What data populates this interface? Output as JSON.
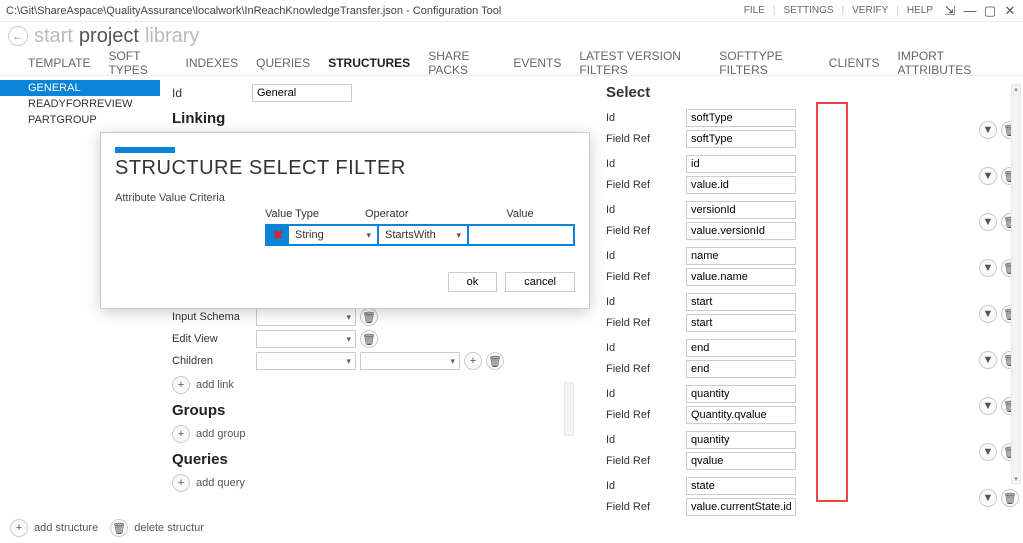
{
  "title_path": "C:\\Git\\ShareAspace\\QualityAssurance\\localwork\\InReachKnowledgeTransfer.json - Configuration Tool",
  "top_menu": [
    "FILE",
    "SETTINGS",
    "VERIFY",
    "HELP"
  ],
  "breadcrumb": {
    "start": "start",
    "project": "project",
    "library": "library"
  },
  "tabs": [
    "TEMPLATE",
    "SOFT TYPES",
    "INDEXES",
    "QUERIES",
    "STRUCTURES",
    "SHARE PACKS",
    "EVENTS",
    "LATEST VERSION FILTERS",
    "SOFTTYPE FILTERS",
    "CLIENTS",
    "IMPORT ATTRIBUTES"
  ],
  "active_tab": "STRUCTURES",
  "sidebar_items": [
    "GENERAL",
    "READYFORREVIEW",
    "PARTGROUP"
  ],
  "sidebar_selected": "GENERAL",
  "form": {
    "id_label": "Id",
    "id_value": "General",
    "linking_header": "Linking",
    "input_schema_label": "Input Schema",
    "edit_view_label": "Edit View",
    "children_label": "Children",
    "add_link": "add link",
    "groups_header": "Groups",
    "add_group": "add group",
    "queries_header": "Queries",
    "add_query": "add query"
  },
  "select_header": "Select",
  "select_rows": [
    {
      "id": "softType",
      "ref": "softType"
    },
    {
      "id": "id",
      "ref": "value.id"
    },
    {
      "id": "versionId",
      "ref": "value.versionId"
    },
    {
      "id": "name",
      "ref": "value.name"
    },
    {
      "id": "start",
      "ref": "start"
    },
    {
      "id": "end",
      "ref": "end"
    },
    {
      "id": "quantity",
      "ref": "Quantity.qvalue"
    },
    {
      "id": "quantity",
      "ref": "qvalue"
    },
    {
      "id": "state",
      "ref": "value.currentState.id"
    }
  ],
  "labels": {
    "id": "Id",
    "field_ref": "Field Ref"
  },
  "modal": {
    "title": "STRUCTURE SELECT FILTER",
    "criteria_label": "Attribute Value Criteria",
    "col_value_type": "Value Type",
    "col_operator": "Operator",
    "col_value": "Value",
    "value_type": "String",
    "operator": "StartsWith",
    "value": "",
    "ok": "ok",
    "cancel": "cancel"
  },
  "footer": {
    "add_structure": "add structure",
    "delete_structure": "delete structur"
  }
}
